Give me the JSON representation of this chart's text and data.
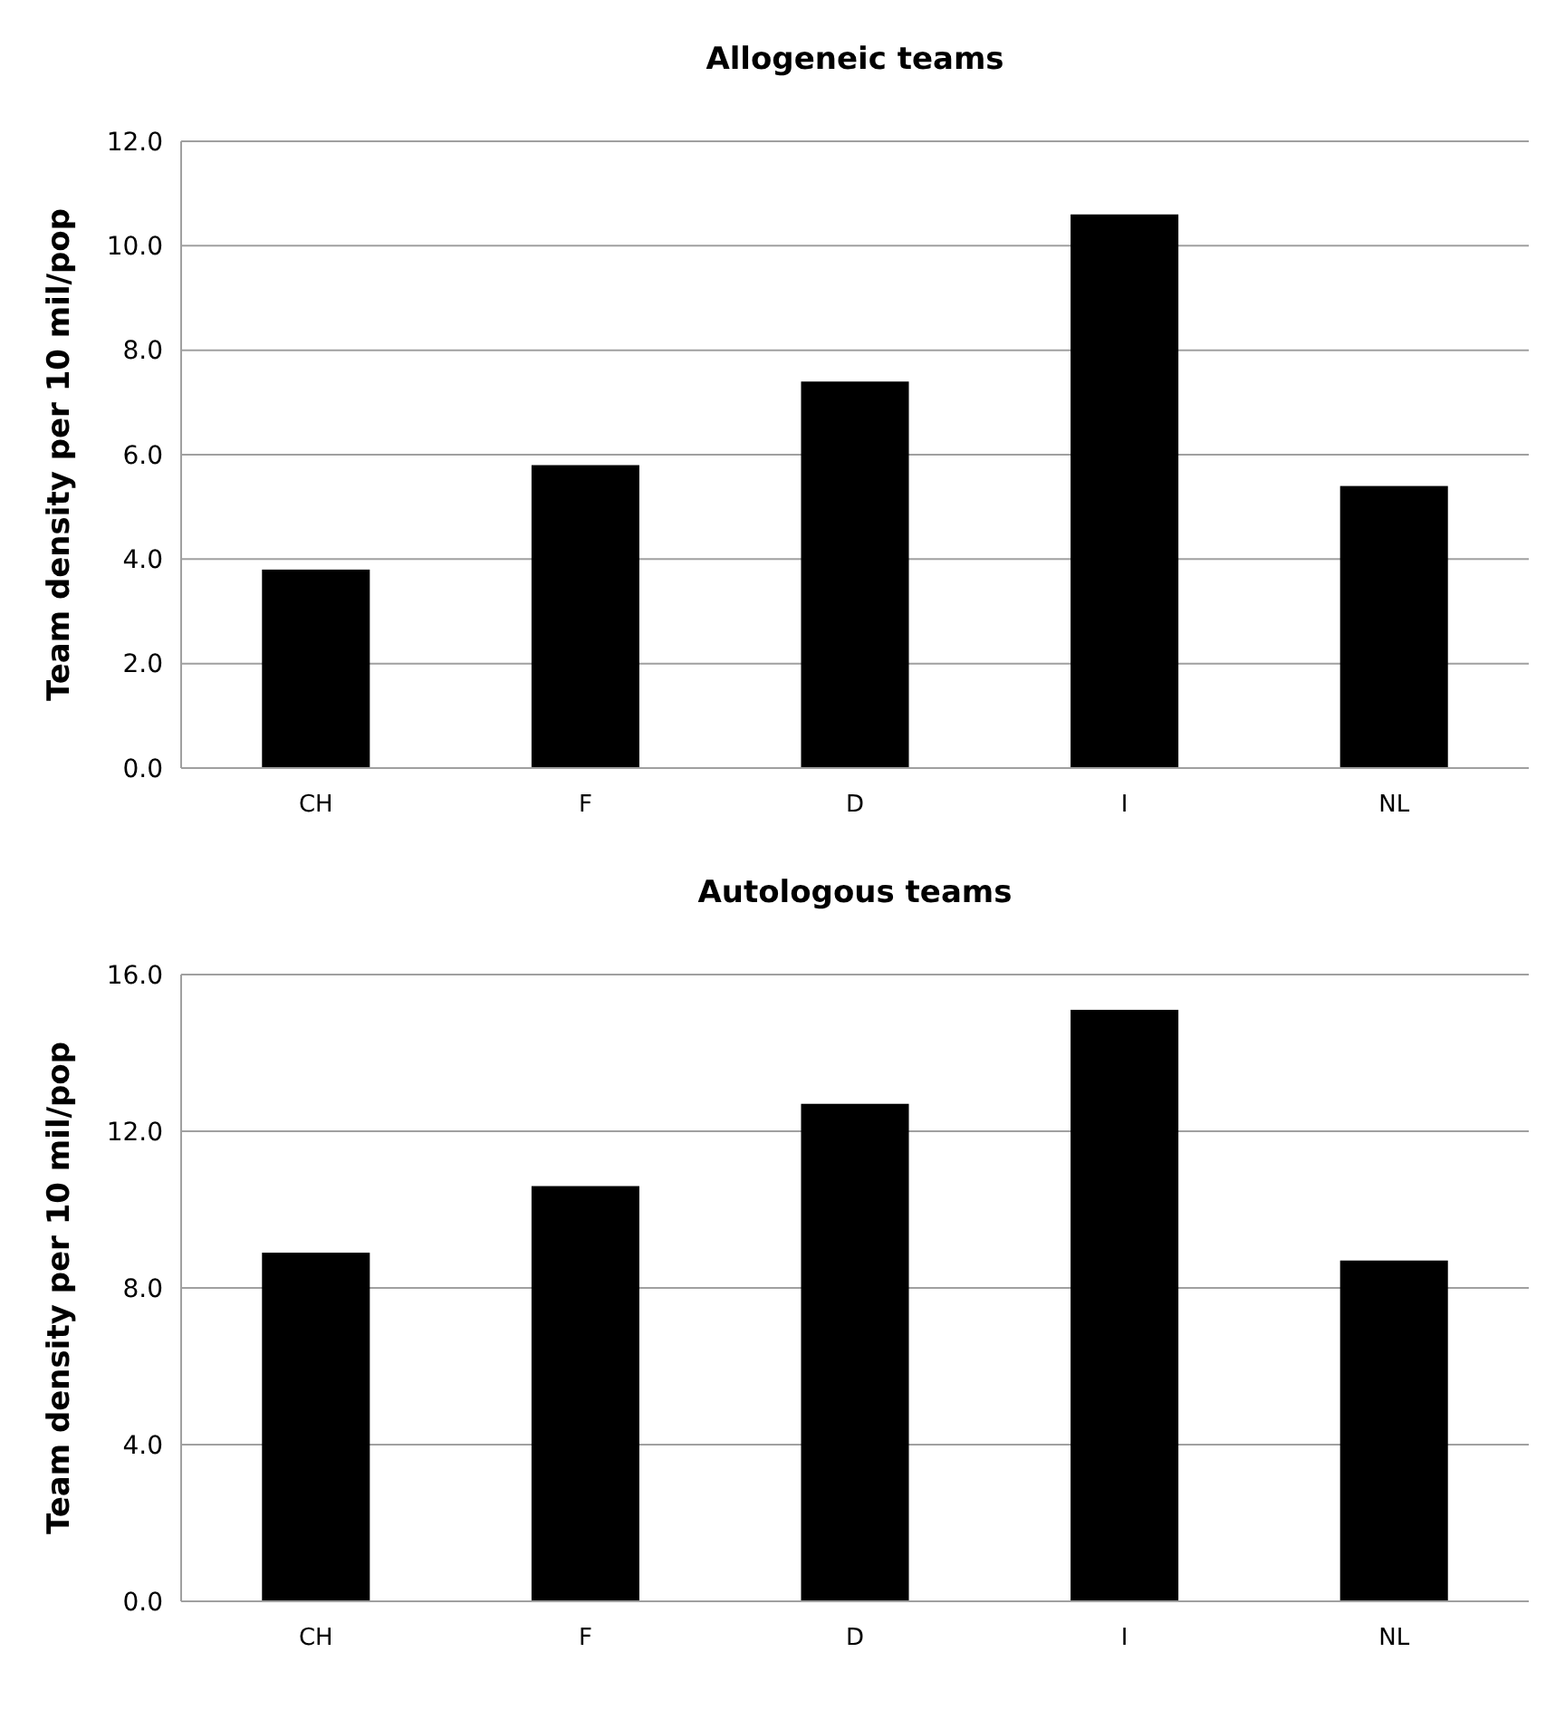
{
  "chart_data": [
    {
      "type": "bar",
      "title": "Allogeneic teams",
      "ylabel": "Team density per 10 mil/pop",
      "categories": [
        "CH",
        "F",
        "D",
        "I",
        "NL"
      ],
      "values": [
        3.8,
        5.8,
        7.4,
        10.6,
        5.4
      ],
      "color": "#000000",
      "ylim": [
        0,
        12
      ],
      "yticks": [
        {
          "value": 0,
          "label": "0.0"
        },
        {
          "value": 2,
          "label": "2.0"
        },
        {
          "value": 4,
          "label": "4.0"
        },
        {
          "value": 6,
          "label": "6.0"
        },
        {
          "value": 8,
          "label": "8.0"
        },
        {
          "value": 10,
          "label": "10.0"
        },
        {
          "value": 12,
          "label": "12.0"
        }
      ],
      "grid": "y"
    },
    {
      "type": "bar",
      "title": "Autologous teams",
      "ylabel": "Team density per 10 mil/pop",
      "categories": [
        "CH",
        "F",
        "D",
        "I",
        "NL"
      ],
      "values": [
        8.9,
        10.6,
        12.7,
        15.1,
        8.7
      ],
      "color": "#000000",
      "ylim": [
        0,
        16
      ],
      "yticks": [
        {
          "value": 0,
          "label": "0.0"
        },
        {
          "value": 4,
          "label": "4.0"
        },
        {
          "value": 8,
          "label": "8.0"
        },
        {
          "value": 12,
          "label": "12.0"
        },
        {
          "value": 16,
          "label": "16.0"
        }
      ],
      "grid": "y"
    }
  ]
}
